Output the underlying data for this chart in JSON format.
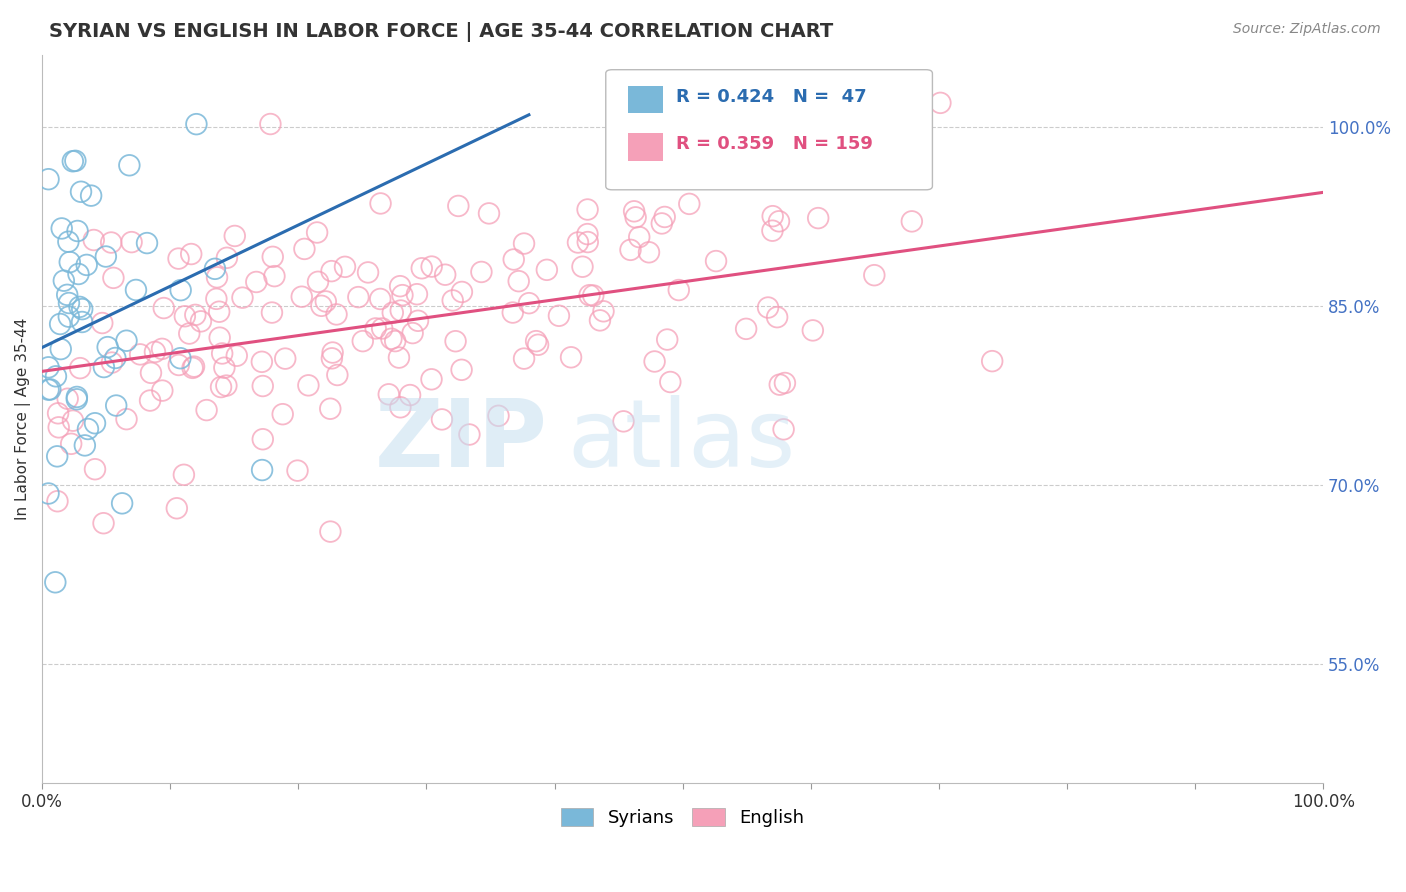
{
  "title": "SYRIAN VS ENGLISH IN LABOR FORCE | AGE 35-44 CORRELATION CHART",
  "source": "Source: ZipAtlas.com",
  "ylabel": "In Labor Force | Age 35-44",
  "xlim": [
    0.0,
    1.0
  ],
  "ylim": [
    0.45,
    1.06
  ],
  "x_tick_positions": [
    0.0,
    0.1,
    0.2,
    0.3,
    0.4,
    0.5,
    0.6,
    0.7,
    0.8,
    0.9,
    1.0
  ],
  "x_tick_labels_show": [
    "0.0%",
    "",
    "",
    "",
    "",
    "",
    "",
    "",
    "",
    "",
    "100.0%"
  ],
  "y_tick_labels_right": [
    "55.0%",
    "70.0%",
    "85.0%",
    "100.0%"
  ],
  "y_tick_positions_right": [
    0.55,
    0.7,
    0.85,
    1.0
  ],
  "grid_color": "#cccccc",
  "background_color": "#ffffff",
  "blue_color": "#7ab8d9",
  "pink_color": "#f5a0b8",
  "blue_line_color": "#2b6cb0",
  "pink_line_color": "#e05080",
  "legend_blue_label": "R = 0.424   N =  47",
  "legend_pink_label": "R = 0.359   N = 159",
  "legend_syrians": "Syrians",
  "legend_english": "English",
  "watermark_zip": "ZIP",
  "watermark_atlas": "atlas",
  "blue_R": 0.424,
  "blue_N": 47,
  "pink_R": 0.359,
  "pink_N": 159,
  "blue_line_x": [
    0.0,
    0.38
  ],
  "blue_line_y": [
    0.815,
    1.01
  ],
  "pink_line_x": [
    0.0,
    1.0
  ],
  "pink_line_y": [
    0.795,
    0.945
  ]
}
